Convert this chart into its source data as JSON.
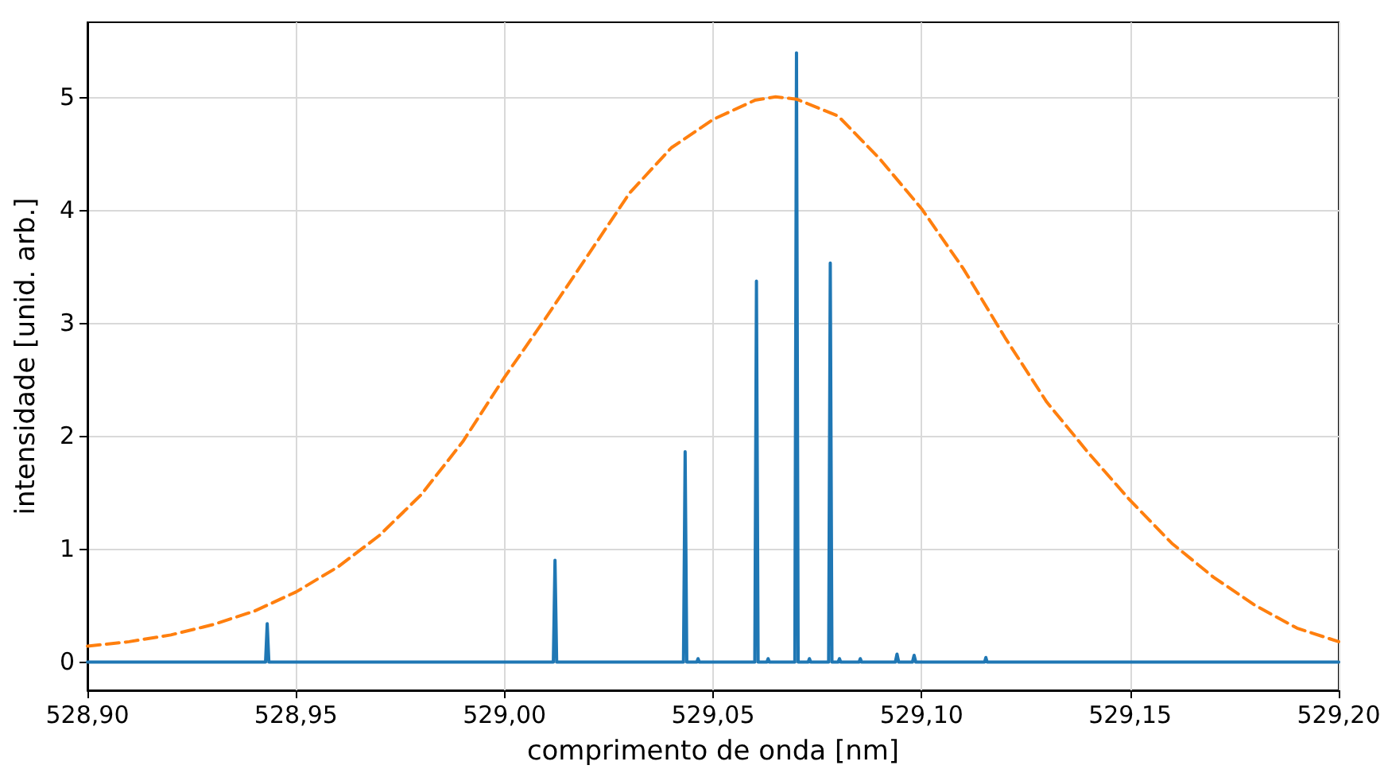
{
  "chart_data": {
    "type": "line",
    "xlabel": "comprimento de onda [nm]",
    "ylabel": "intensidade [unid. arb.]",
    "xlim": [
      528.9,
      529.2
    ],
    "ylim": [
      -0.25,
      5.66
    ],
    "xticks": [
      {
        "value": 528.9,
        "label": "528,90"
      },
      {
        "value": 528.95,
        "label": "528,95"
      },
      {
        "value": 529.0,
        "label": "529,00"
      },
      {
        "value": 529.05,
        "label": "529,05"
      },
      {
        "value": 529.1,
        "label": "529,10"
      },
      {
        "value": 529.15,
        "label": "529,15"
      },
      {
        "value": 529.2,
        "label": "529,20"
      }
    ],
    "yticks": [
      0,
      1,
      2,
      3,
      4,
      5
    ],
    "grid": true,
    "marker": "none",
    "series": [
      {
        "color": "#1f77b4",
        "line_style": "solid",
        "x": [
          528.9,
          528.9427,
          528.9431,
          528.9435,
          529.0117,
          529.0121,
          529.0125,
          529.0429,
          529.0433,
          529.0437,
          529.0461,
          529.0464,
          529.0467,
          529.06,
          529.0604,
          529.0608,
          529.0629,
          529.0632,
          529.0635,
          529.0696,
          529.07,
          529.0704,
          529.0728,
          529.0731,
          529.0734,
          529.0777,
          529.0781,
          529.0785,
          529.08,
          529.0803,
          529.0806,
          529.085,
          529.0853,
          529.0856,
          529.0937,
          529.0941,
          529.0945,
          529.0978,
          529.0982,
          529.0986,
          529.1151,
          529.1154,
          529.1157,
          529.2
        ],
        "values": [
          0,
          0,
          0.34,
          0,
          0,
          0.9,
          0,
          0,
          1.86,
          0,
          0,
          0.03,
          0,
          0,
          3.37,
          0,
          0,
          0.03,
          0,
          0,
          5.39,
          0,
          0,
          0.03,
          0,
          0,
          3.53,
          0,
          0,
          0.03,
          0,
          0,
          0.03,
          0,
          0,
          0.07,
          0,
          0,
          0.06,
          0,
          0,
          0.04,
          0,
          0
        ]
      },
      {
        "color": "#ff7f0e",
        "line_style": "dashed",
        "x": [
          528.9,
          528.91,
          528.92,
          528.93,
          528.94,
          528.95,
          528.96,
          528.97,
          528.98,
          528.99,
          529.0,
          529.01,
          529.02,
          529.03,
          529.04,
          529.05,
          529.06,
          529.065,
          529.07,
          529.08,
          529.09,
          529.1,
          529.11,
          529.12,
          529.13,
          529.14,
          529.15,
          529.16,
          529.17,
          529.18,
          529.19,
          529.2
        ],
        "values": [
          0.14,
          0.18,
          0.24,
          0.33,
          0.45,
          0.62,
          0.84,
          1.12,
          1.48,
          1.95,
          2.52,
          3.05,
          3.6,
          4.15,
          4.55,
          4.8,
          4.97,
          5.0,
          4.98,
          4.83,
          4.45,
          4.01,
          3.48,
          2.87,
          2.3,
          1.85,
          1.43,
          1.05,
          0.75,
          0.5,
          0.3,
          0.18
        ]
      }
    ]
  }
}
